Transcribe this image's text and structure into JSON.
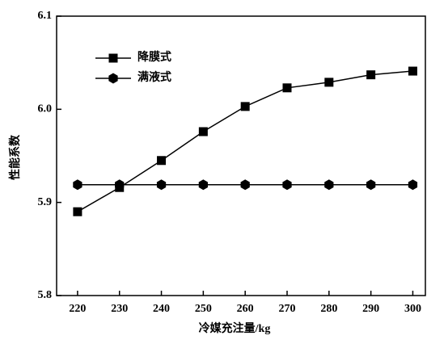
{
  "chart_data": {
    "type": "line",
    "x": [
      220,
      230,
      240,
      250,
      260,
      270,
      280,
      290,
      300
    ],
    "series": [
      {
        "name": "降膜式",
        "color": "#000000",
        "marker": "square",
        "values": [
          5.89,
          5.916,
          5.945,
          5.976,
          6.003,
          6.023,
          6.029,
          6.037,
          6.041
        ]
      },
      {
        "name": "满液式",
        "color": "#000000",
        "marker": "hexagon",
        "values": [
          5.919,
          5.919,
          5.919,
          5.919,
          5.919,
          5.919,
          5.919,
          5.919,
          5.919
        ]
      }
    ],
    "xlabel": "冷媒充注量/kg",
    "ylabel": "性能系数",
    "xlim": [
      215,
      303
    ],
    "xticks": [
      220,
      230,
      240,
      250,
      260,
      270,
      280,
      290,
      300
    ],
    "ylim": [
      5.8,
      6.1
    ],
    "yticks": [
      5.8,
      5.9,
      {
        "value": 6,
        "label": "6.0"
      },
      6.1
    ],
    "legend": "upper left"
  }
}
